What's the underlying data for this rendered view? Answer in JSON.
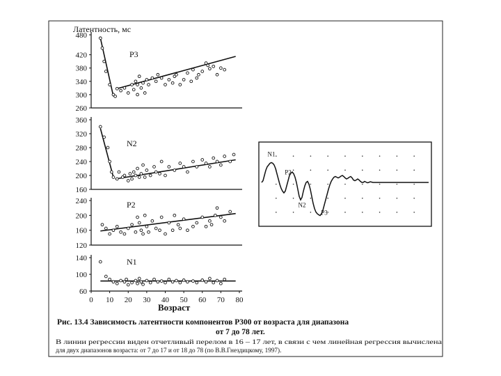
{
  "page": {
    "caption_title": "Рис. 13.4  Зависимость латентности компонентов Р300 от возраста для диапазона",
    "caption_title_cont": "от 7 до 78 лет.",
    "caption_note_1": "В линии регрессии виден отчетливый перелом в 16 – 17 лет, в связи с чем линейная регрессия вычислена",
    "caption_note_2": "для двух диапазонов возраста: от 7 до 17 и от 18 до 78 (по В.В.Гнездицкому, 1997)."
  },
  "chart_data": [
    {
      "type": "scatter",
      "ylabel": "Латентность, мс",
      "panel_label": "P3",
      "yticks": [
        480,
        420,
        380,
        340,
        300,
        260
      ],
      "ylim": [
        260,
        480
      ],
      "xlim": [
        0,
        80
      ],
      "points": [
        [
          5,
          470
        ],
        [
          6,
          440
        ],
        [
          7,
          400
        ],
        [
          8,
          370
        ],
        [
          10,
          330
        ],
        [
          12,
          300
        ],
        [
          13,
          295
        ],
        [
          14,
          318
        ],
        [
          16,
          312
        ],
        [
          18,
          320
        ],
        [
          20,
          305
        ],
        [
          22,
          330
        ],
        [
          23,
          315
        ],
        [
          24,
          340
        ],
        [
          25,
          300
        ],
        [
          25,
          330
        ],
        [
          26,
          355
        ],
        [
          27,
          320
        ],
        [
          28,
          335
        ],
        [
          29,
          305
        ],
        [
          30,
          345
        ],
        [
          31,
          330
        ],
        [
          33,
          350
        ],
        [
          35,
          340
        ],
        [
          36,
          360
        ],
        [
          38,
          350
        ],
        [
          40,
          330
        ],
        [
          42,
          345
        ],
        [
          44,
          335
        ],
        [
          45,
          355
        ],
        [
          46,
          360
        ],
        [
          48,
          330
        ],
        [
          50,
          345
        ],
        [
          52,
          365
        ],
        [
          54,
          340
        ],
        [
          55,
          375
        ],
        [
          57,
          350
        ],
        [
          58,
          360
        ],
        [
          60,
          370
        ],
        [
          62,
          395
        ],
        [
          63,
          388
        ],
        [
          64,
          378
        ],
        [
          66,
          385
        ],
        [
          68,
          360
        ],
        [
          70,
          380
        ],
        [
          72,
          375
        ]
      ],
      "regression": [
        {
          "x": [
            5,
            12
          ],
          "y": [
            470,
            295
          ]
        },
        {
          "x": [
            14,
            78
          ],
          "y": [
            318,
            415
          ]
        }
      ]
    },
    {
      "type": "scatter",
      "panel_label": "N2",
      "yticks": [
        360,
        320,
        280,
        240,
        200,
        160
      ],
      "ylim": [
        160,
        360
      ],
      "xlim": [
        0,
        80
      ],
      "points": [
        [
          5,
          340
        ],
        [
          7,
          310
        ],
        [
          9,
          280
        ],
        [
          10,
          240
        ],
        [
          11,
          210
        ],
        [
          12,
          195
        ],
        [
          14,
          190
        ],
        [
          15,
          210
        ],
        [
          17,
          195
        ],
        [
          18,
          200
        ],
        [
          20,
          185
        ],
        [
          21,
          205
        ],
        [
          22,
          190
        ],
        [
          23,
          210
        ],
        [
          24,
          200
        ],
        [
          25,
          220
        ],
        [
          26,
          195
        ],
        [
          27,
          205
        ],
        [
          28,
          230
        ],
        [
          29,
          195
        ],
        [
          30,
          215
        ],
        [
          32,
          200
        ],
        [
          34,
          225
        ],
        [
          35,
          210
        ],
        [
          37,
          205
        ],
        [
          38,
          240
        ],
        [
          40,
          200
        ],
        [
          42,
          225
        ],
        [
          45,
          215
        ],
        [
          48,
          235
        ],
        [
          50,
          225
        ],
        [
          52,
          210
        ],
        [
          55,
          240
        ],
        [
          57,
          225
        ],
        [
          60,
          245
        ],
        [
          62,
          235
        ],
        [
          64,
          225
        ],
        [
          66,
          250
        ],
        [
          68,
          240
        ],
        [
          70,
          230
        ],
        [
          72,
          255
        ],
        [
          75,
          240
        ],
        [
          77,
          260
        ]
      ],
      "regression": [
        {
          "x": [
            5,
            12
          ],
          "y": [
            335,
            195
          ]
        },
        {
          "x": [
            13,
            78
          ],
          "y": [
            190,
            245
          ]
        }
      ]
    },
    {
      "type": "scatter",
      "panel_label": "P2",
      "yticks": [
        240,
        200,
        160,
        120
      ],
      "ylim": [
        120,
        240
      ],
      "xlim": [
        0,
        80
      ],
      "points": [
        [
          6,
          175
        ],
        [
          8,
          165
        ],
        [
          10,
          150
        ],
        [
          12,
          160
        ],
        [
          14,
          170
        ],
        [
          16,
          155
        ],
        [
          18,
          150
        ],
        [
          20,
          165
        ],
        [
          22,
          175
        ],
        [
          24,
          155
        ],
        [
          25,
          195
        ],
        [
          26,
          180
        ],
        [
          27,
          160
        ],
        [
          28,
          150
        ],
        [
          29,
          200
        ],
        [
          30,
          170
        ],
        [
          31,
          155
        ],
        [
          33,
          185
        ],
        [
          35,
          165
        ],
        [
          37,
          160
        ],
        [
          38,
          195
        ],
        [
          40,
          150
        ],
        [
          42,
          180
        ],
        [
          44,
          160
        ],
        [
          45,
          200
        ],
        [
          47,
          175
        ],
        [
          48,
          165
        ],
        [
          50,
          190
        ],
        [
          52,
          160
        ],
        [
          55,
          170
        ],
        [
          57,
          180
        ],
        [
          60,
          195
        ],
        [
          62,
          170
        ],
        [
          64,
          185
        ],
        [
          65,
          175
        ],
        [
          67,
          200
        ],
        [
          68,
          220
        ],
        [
          70,
          195
        ],
        [
          72,
          185
        ],
        [
          75,
          210
        ]
      ],
      "regression": [
        {
          "x": [
            5,
            78
          ],
          "y": [
            158,
            205
          ]
        }
      ]
    },
    {
      "type": "scatter",
      "panel_label": "N1",
      "yticks": [
        140,
        100,
        60
      ],
      "ylim": [
        60,
        140
      ],
      "xlim": [
        0,
        80
      ],
      "xticks": [
        0,
        10,
        20,
        30,
        40,
        50,
        60,
        70,
        80
      ],
      "xlabel": "Возраст",
      "points": [
        [
          5,
          130
        ],
        [
          8,
          95
        ],
        [
          10,
          88
        ],
        [
          12,
          82
        ],
        [
          14,
          78
        ],
        [
          16,
          85
        ],
        [
          18,
          82
        ],
        [
          19,
          88
        ],
        [
          20,
          75
        ],
        [
          22,
          80
        ],
        [
          24,
          85
        ],
        [
          25,
          78
        ],
        [
          26,
          90
        ],
        [
          27,
          82
        ],
        [
          28,
          76
        ],
        [
          30,
          85
        ],
        [
          32,
          80
        ],
        [
          34,
          88
        ],
        [
          36,
          82
        ],
        [
          38,
          84
        ],
        [
          40,
          80
        ],
        [
          42,
          88
        ],
        [
          44,
          82
        ],
        [
          46,
          85
        ],
        [
          48,
          80
        ],
        [
          50,
          86
        ],
        [
          52,
          82
        ],
        [
          55,
          84
        ],
        [
          57,
          80
        ],
        [
          60,
          86
        ],
        [
          62,
          82
        ],
        [
          64,
          90
        ],
        [
          66,
          80
        ],
        [
          68,
          85
        ],
        [
          70,
          78
        ],
        [
          72,
          88
        ]
      ],
      "regression": [
        {
          "x": [
            5,
            78
          ],
          "y": [
            84,
            84
          ]
        }
      ]
    },
    {
      "type": "line",
      "labels": [
        {
          "text": "N1",
          "at": 7
        },
        {
          "text": "N2",
          "at": 29
        },
        {
          "text": "P2",
          "at": 19
        },
        {
          "text": "P3",
          "at": 45
        }
      ],
      "x": [
        0,
        1,
        2,
        3,
        4,
        5,
        6,
        7,
        8,
        9,
        10,
        11,
        12,
        13,
        14,
        15,
        16,
        17,
        18,
        19,
        20,
        21,
        22,
        23,
        24,
        25,
        26,
        27,
        28,
        29,
        30,
        31,
        32,
        33,
        34,
        35,
        36,
        37,
        38,
        39,
        40,
        41,
        42,
        43,
        44,
        45,
        46,
        47,
        48,
        49,
        50,
        51,
        52,
        53,
        54,
        55,
        56,
        57,
        58,
        59,
        60,
        61,
        62,
        63,
        64,
        65,
        66,
        67,
        68,
        69,
        70,
        71,
        72,
        73,
        74,
        75,
        76,
        77,
        78,
        79,
        80,
        81,
        82,
        83,
        84,
        85,
        86,
        87,
        88,
        89,
        90,
        91,
        92,
        93,
        94,
        95,
        96,
        97,
        98,
        99,
        100,
        101,
        102,
        103,
        104,
        105,
        106,
        107,
        108,
        109,
        110,
        111,
        112,
        113,
        114,
        115,
        116,
        117,
        118,
        119,
        120
      ],
      "y": [
        0.05,
        0.1,
        0.25,
        0.4,
        0.5,
        0.55,
        0.6,
        0.62,
        0.6,
        0.55,
        0.45,
        0.3,
        0.15,
        0.0,
        -0.12,
        -0.2,
        -0.25,
        -0.2,
        -0.05,
        0.1,
        0.25,
        0.32,
        0.35,
        0.3,
        0.2,
        0.05,
        -0.15,
        -0.35,
        -0.45,
        -0.38,
        -0.2,
        -0.05,
        0.05,
        0.08,
        0.0,
        -0.15,
        -0.35,
        -0.55,
        -0.7,
        -0.8,
        -0.85,
        -0.88,
        -0.9,
        -0.85,
        -0.75,
        -0.6,
        -0.45,
        -0.3,
        -0.15,
        -0.02,
        0.08,
        0.15,
        0.2,
        0.22,
        0.2,
        0.18,
        0.2,
        0.23,
        0.25,
        0.22,
        0.18,
        0.15,
        0.17,
        0.2,
        0.22,
        0.18,
        0.12,
        0.1,
        0.12,
        0.15,
        0.12,
        0.08,
        0.05,
        0.05,
        0.08,
        0.06,
        0.04,
        0.05,
        0.07,
        0.06,
        0.05,
        0.05,
        0.05,
        0.05,
        0.05,
        0.05,
        0.05,
        0.05,
        0.05,
        0.05,
        0.05,
        0.05,
        0.05,
        0.05,
        0.05,
        0.05,
        0.05,
        0.05,
        0.05,
        0.05,
        0.05,
        0.05,
        0.05,
        0.05,
        0.05,
        0.05,
        0.05,
        0.05,
        0.05,
        0.05,
        0.05,
        0.05,
        0.05,
        0.05,
        0.05,
        0.05,
        0.05,
        0.05,
        0.05,
        0.05,
        0.05
      ]
    }
  ]
}
